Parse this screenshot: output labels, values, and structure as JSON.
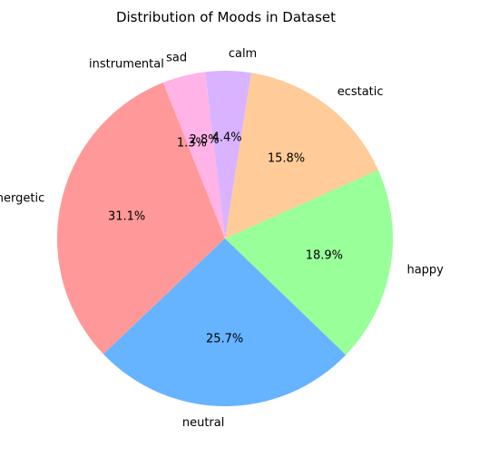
{
  "chart_data": {
    "type": "pie",
    "title": "Distribution of Moods in Dataset",
    "slices": [
      {
        "label": "energetic",
        "value": 31.1,
        "pct_label": "31.1%",
        "color": "#ff9999"
      },
      {
        "label": "neutral",
        "value": 25.7,
        "pct_label": "25.7%",
        "color": "#66b3ff"
      },
      {
        "label": "happy",
        "value": 18.9,
        "pct_label": "18.9%",
        "color": "#99ff99"
      },
      {
        "label": "ecstatic",
        "value": 15.8,
        "pct_label": "15.8%",
        "color": "#ffcc99"
      },
      {
        "label": "calm",
        "value": 4.4,
        "pct_label": "4.4%",
        "color": "#d9b3ff"
      },
      {
        "label": "sad",
        "value": 2.8,
        "pct_label": "2.8%",
        "color": "#ffb3e6"
      },
      {
        "label": "instrumental",
        "value": 1.3,
        "pct_label": "1.3%",
        "color": "#ffb3e6"
      }
    ]
  }
}
